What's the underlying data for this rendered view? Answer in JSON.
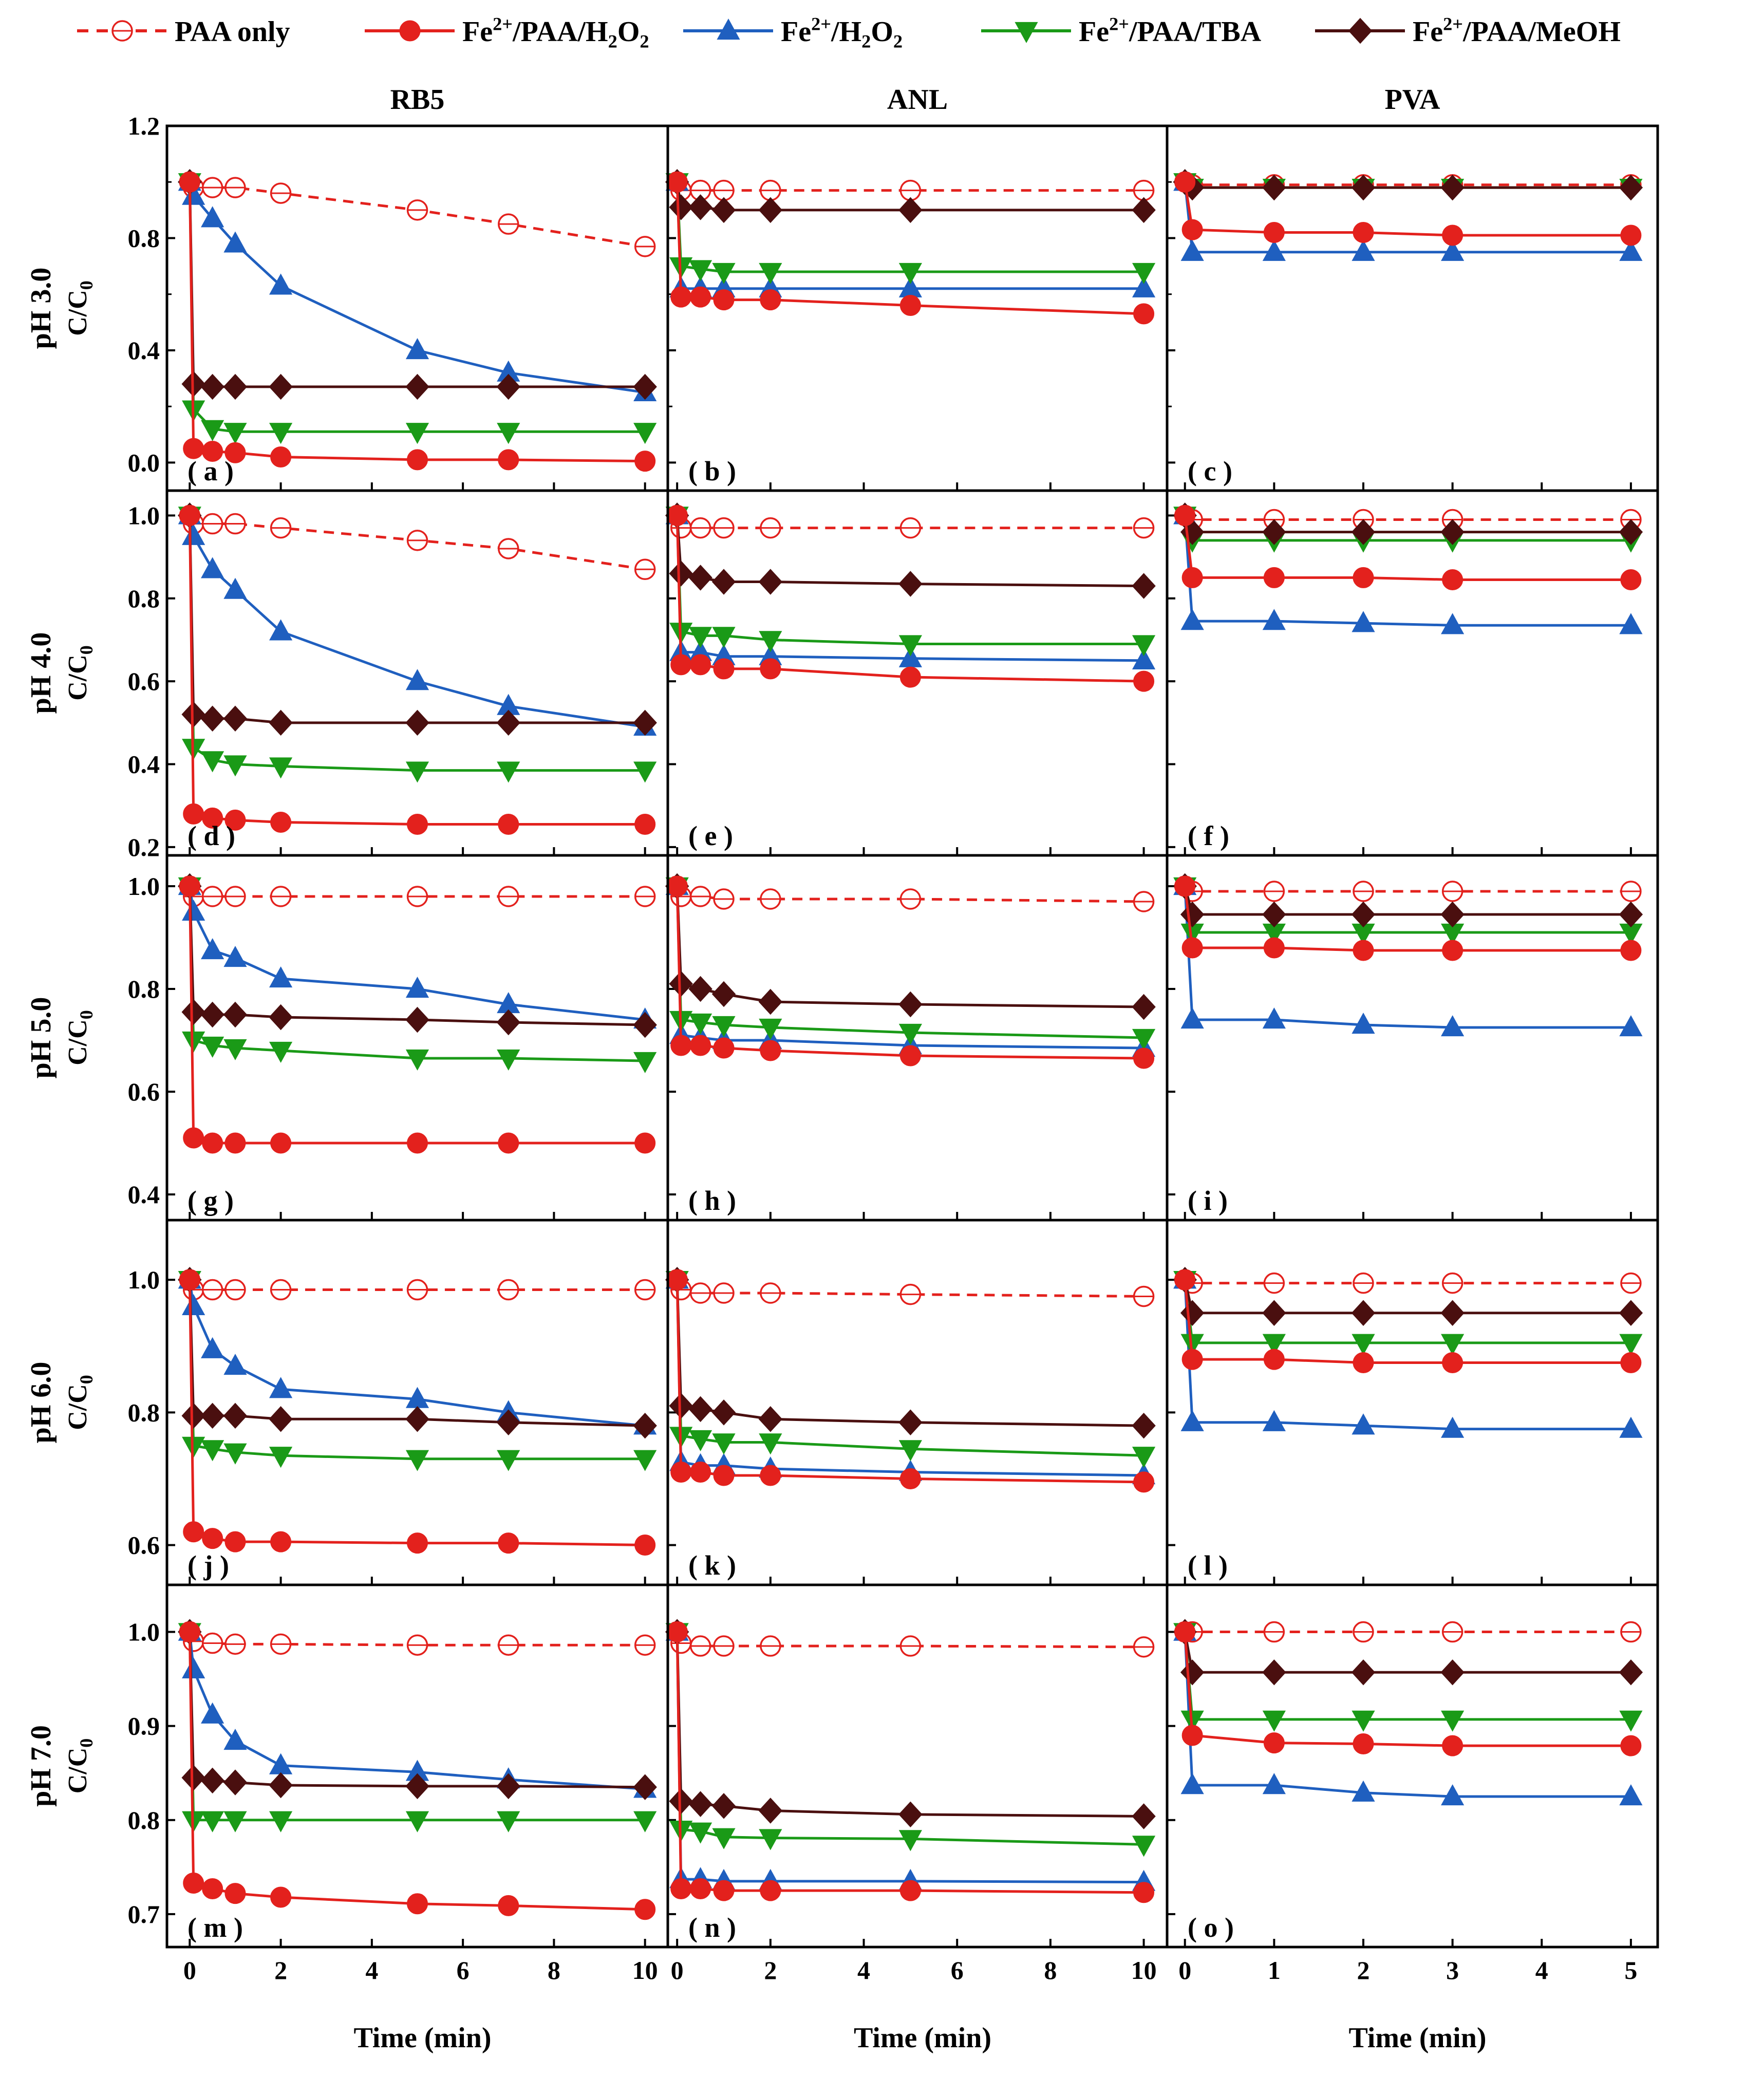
{
  "chart_data": {
    "type": "line",
    "layout": {
      "rows": 5,
      "columns": 3
    },
    "legend": {
      "placement": "top",
      "entries": [
        {
          "key": "paa",
          "label": "PAA only",
          "color": "#e3211d",
          "marker": "open-circle",
          "line": "dashed"
        },
        {
          "key": "h2o2",
          "label": "Fe2+/PAA/H2O2",
          "label_parts": [
            "Fe",
            "2+",
            "/PAA/H",
            "2",
            "O",
            "2"
          ],
          "color": "#e3211d",
          "marker": "circle",
          "line": "solid"
        },
        {
          "key": "fenton",
          "label": "Fe2+/H2O2",
          "label_parts": [
            "Fe",
            "2+",
            "/H",
            "2",
            "O",
            "2"
          ],
          "color": "#1f5fbf",
          "marker": "triangle-up",
          "line": "solid"
        },
        {
          "key": "tba",
          "label": "Fe2+/PAA/TBA",
          "label_parts": [
            "Fe",
            "2+",
            "/PAA/TBA"
          ],
          "color": "#1a9a17",
          "marker": "triangle-down",
          "line": "solid"
        },
        {
          "key": "meoh",
          "label": "Fe2+/PAA/MeOH",
          "label_parts": [
            "Fe",
            "2+",
            "/PAA/MeOH"
          ],
          "color": "#4a0f0f",
          "marker": "diamond",
          "line": "solid"
        }
      ]
    },
    "column_titles": [
      "RB5",
      "ANL",
      "PVA"
    ],
    "row_labels": [
      "pH 3.0",
      "pH 4.0",
      "pH 5.0",
      "pH 6.0",
      "pH 7.0"
    ],
    "ylabel": "C/C0",
    "ylabel_parts": [
      "C/C",
      "0"
    ],
    "xlabel": "Time (min)",
    "columns": [
      {
        "name": "RB5",
        "x": [
          0,
          0.083,
          0.5,
          1,
          2,
          5,
          7,
          10
        ],
        "xlim": [
          -0.5,
          10.5
        ],
        "xticks": [
          0,
          2,
          4,
          6,
          8,
          10
        ]
      },
      {
        "name": "ANL",
        "x": [
          0,
          0.083,
          0.5,
          1,
          2,
          5,
          10
        ],
        "xlim": [
          -0.2,
          10.5
        ],
        "xticks": [
          0,
          2,
          4,
          6,
          8,
          10
        ]
      },
      {
        "name": "PVA",
        "x": [
          0,
          0.083,
          1,
          2,
          3,
          5
        ],
        "xlim": [
          -0.2,
          5.3
        ],
        "xticks": [
          0,
          1,
          2,
          3,
          4,
          5
        ]
      }
    ],
    "rows": [
      {
        "ph": "pH 3.0",
        "ylim": [
          -0.1,
          1.2
        ],
        "yticks": [
          "0.0",
          "0.4",
          "0.8",
          "1.2"
        ],
        "minor": [
          0.2,
          0.6,
          1.0
        ]
      },
      {
        "ph": "pH 4.0",
        "ylim": [
          0.18,
          1.06
        ],
        "yticks": [
          "0.2",
          "0.4",
          "0.6",
          "0.8",
          "1.0"
        ],
        "minor": []
      },
      {
        "ph": "pH 5.0",
        "ylim": [
          0.35,
          1.06
        ],
        "yticks": [
          "0.4",
          "0.6",
          "0.8",
          "1.0"
        ],
        "minor": []
      },
      {
        "ph": "pH 6.0",
        "ylim": [
          0.54,
          1.09
        ],
        "yticks": [
          "0.6",
          "0.8",
          "1.0"
        ],
        "minor": []
      },
      {
        "ph": "pH 7.0",
        "ylim": [
          0.665,
          1.05
        ],
        "yticks": [
          "0.7",
          "0.8",
          "0.9",
          "1.0"
        ],
        "minor": []
      }
    ],
    "panels": [
      {
        "label": "( a )",
        "row": 0,
        "col": 0,
        "series": {
          "paa": [
            1.0,
            0.98,
            0.98,
            0.98,
            0.96,
            0.9,
            0.85,
            0.77
          ],
          "h2o2": [
            1.0,
            0.05,
            0.04,
            0.035,
            0.02,
            0.01,
            0.01,
            0.005
          ],
          "fenton": [
            1.0,
            0.95,
            0.87,
            0.78,
            0.63,
            0.4,
            0.32,
            0.25
          ],
          "tba": [
            1.0,
            0.19,
            0.12,
            0.11,
            0.11,
            0.11,
            0.11,
            0.11
          ],
          "meoh": [
            1.0,
            0.28,
            0.27,
            0.27,
            0.27,
            0.27,
            0.27,
            0.27
          ]
        }
      },
      {
        "label": "( b )",
        "row": 0,
        "col": 1,
        "series": {
          "paa": [
            1.0,
            0.97,
            0.97,
            0.97,
            0.97,
            0.97,
            0.97
          ],
          "h2o2": [
            1.0,
            0.59,
            0.59,
            0.58,
            0.58,
            0.56,
            0.53
          ],
          "fenton": [
            1.0,
            0.62,
            0.62,
            0.62,
            0.62,
            0.62,
            0.62
          ],
          "tba": [
            1.0,
            0.7,
            0.69,
            0.68,
            0.68,
            0.68,
            0.68
          ],
          "meoh": [
            1.0,
            0.91,
            0.91,
            0.9,
            0.9,
            0.9,
            0.9
          ]
        }
      },
      {
        "label": "( c )",
        "row": 0,
        "col": 2,
        "series": {
          "paa": [
            1.0,
            0.99,
            0.99,
            0.99,
            0.99,
            0.99
          ],
          "h2o2": [
            1.0,
            0.83,
            0.82,
            0.82,
            0.81,
            0.81
          ],
          "fenton": [
            1.0,
            0.75,
            0.75,
            0.75,
            0.75,
            0.75
          ],
          "tba": [
            1.0,
            0.98,
            0.98,
            0.98,
            0.98,
            0.98
          ],
          "meoh": [
            1.0,
            0.98,
            0.98,
            0.98,
            0.98,
            0.98
          ]
        }
      },
      {
        "label": "( d )",
        "row": 1,
        "col": 0,
        "series": {
          "paa": [
            1.0,
            0.98,
            0.98,
            0.98,
            0.97,
            0.94,
            0.92,
            0.87
          ],
          "h2o2": [
            1.0,
            0.28,
            0.27,
            0.265,
            0.26,
            0.255,
            0.255,
            0.255
          ],
          "fenton": [
            1.0,
            0.95,
            0.87,
            0.82,
            0.72,
            0.6,
            0.54,
            0.49
          ],
          "tba": [
            1.0,
            0.44,
            0.41,
            0.4,
            0.395,
            0.385,
            0.385,
            0.385
          ],
          "meoh": [
            1.0,
            0.52,
            0.51,
            0.51,
            0.5,
            0.5,
            0.5,
            0.5
          ]
        }
      },
      {
        "label": "( e )",
        "row": 1,
        "col": 1,
        "series": {
          "paa": [
            1.0,
            0.97,
            0.97,
            0.97,
            0.97,
            0.97,
            0.97
          ],
          "h2o2": [
            1.0,
            0.64,
            0.64,
            0.63,
            0.63,
            0.61,
            0.6
          ],
          "fenton": [
            1.0,
            0.67,
            0.67,
            0.66,
            0.66,
            0.655,
            0.65
          ],
          "tba": [
            1.0,
            0.72,
            0.71,
            0.71,
            0.7,
            0.69,
            0.69
          ],
          "meoh": [
            1.0,
            0.86,
            0.85,
            0.84,
            0.84,
            0.835,
            0.83
          ]
        }
      },
      {
        "label": "( f )",
        "row": 1,
        "col": 2,
        "series": {
          "paa": [
            1.0,
            0.99,
            0.99,
            0.99,
            0.99,
            0.99
          ],
          "h2o2": [
            1.0,
            0.85,
            0.85,
            0.85,
            0.845,
            0.845
          ],
          "fenton": [
            1.0,
            0.745,
            0.745,
            0.74,
            0.735,
            0.735
          ],
          "tba": [
            1.0,
            0.94,
            0.94,
            0.94,
            0.94,
            0.94
          ],
          "meoh": [
            1.0,
            0.96,
            0.96,
            0.96,
            0.96,
            0.96
          ]
        }
      },
      {
        "label": "( g )",
        "row": 2,
        "col": 0,
        "series": {
          "paa": [
            1.0,
            0.98,
            0.98,
            0.98,
            0.98,
            0.98,
            0.98,
            0.98
          ],
          "h2o2": [
            1.0,
            0.51,
            0.5,
            0.5,
            0.5,
            0.5,
            0.5,
            0.5
          ],
          "fenton": [
            1.0,
            0.95,
            0.875,
            0.86,
            0.82,
            0.8,
            0.77,
            0.74
          ],
          "tba": [
            1.0,
            0.7,
            0.69,
            0.685,
            0.68,
            0.665,
            0.665,
            0.66
          ],
          "meoh": [
            1.0,
            0.755,
            0.75,
            0.75,
            0.745,
            0.74,
            0.735,
            0.73
          ]
        }
      },
      {
        "label": "( h )",
        "row": 2,
        "col": 1,
        "series": {
          "paa": [
            1.0,
            0.98,
            0.98,
            0.975,
            0.975,
            0.975,
            0.97
          ],
          "h2o2": [
            1.0,
            0.69,
            0.69,
            0.685,
            0.68,
            0.67,
            0.665
          ],
          "fenton": [
            1.0,
            0.71,
            0.705,
            0.7,
            0.7,
            0.69,
            0.685
          ],
          "tba": [
            1.0,
            0.74,
            0.735,
            0.73,
            0.725,
            0.715,
            0.705
          ],
          "meoh": [
            1.0,
            0.81,
            0.8,
            0.79,
            0.775,
            0.77,
            0.765
          ]
        }
      },
      {
        "label": "( i )",
        "row": 2,
        "col": 2,
        "series": {
          "paa": [
            1.0,
            0.99,
            0.99,
            0.99,
            0.99,
            0.99
          ],
          "h2o2": [
            1.0,
            0.88,
            0.88,
            0.875,
            0.875,
            0.875
          ],
          "fenton": [
            1.0,
            0.74,
            0.74,
            0.73,
            0.725,
            0.725
          ],
          "tba": [
            1.0,
            0.91,
            0.91,
            0.91,
            0.91,
            0.91
          ],
          "meoh": [
            1.0,
            0.945,
            0.945,
            0.945,
            0.945,
            0.945
          ]
        }
      },
      {
        "label": "( j )",
        "row": 3,
        "col": 0,
        "series": {
          "paa": [
            1.0,
            0.985,
            0.985,
            0.985,
            0.985,
            0.985,
            0.985,
            0.985
          ],
          "h2o2": [
            1.0,
            0.62,
            0.61,
            0.605,
            0.605,
            0.603,
            0.603,
            0.6
          ],
          "fenton": [
            1.0,
            0.96,
            0.895,
            0.87,
            0.835,
            0.82,
            0.8,
            0.78
          ],
          "tba": [
            1.0,
            0.75,
            0.745,
            0.74,
            0.735,
            0.73,
            0.73,
            0.73
          ],
          "meoh": [
            1.0,
            0.795,
            0.795,
            0.795,
            0.79,
            0.79,
            0.785,
            0.78
          ]
        }
      },
      {
        "label": "( k )",
        "row": 3,
        "col": 1,
        "series": {
          "paa": [
            1.0,
            0.985,
            0.98,
            0.98,
            0.98,
            0.978,
            0.975
          ],
          "h2o2": [
            1.0,
            0.71,
            0.71,
            0.705,
            0.705,
            0.7,
            0.695
          ],
          "fenton": [
            1.0,
            0.725,
            0.72,
            0.72,
            0.715,
            0.71,
            0.705
          ],
          "tba": [
            1.0,
            0.765,
            0.76,
            0.755,
            0.755,
            0.745,
            0.735
          ],
          "meoh": [
            1.0,
            0.81,
            0.805,
            0.8,
            0.79,
            0.785,
            0.78
          ]
        }
      },
      {
        "label": "( l )",
        "row": 3,
        "col": 2,
        "series": {
          "paa": [
            1.0,
            0.995,
            0.995,
            0.995,
            0.995,
            0.995
          ],
          "h2o2": [
            1.0,
            0.88,
            0.88,
            0.875,
            0.875,
            0.875
          ],
          "fenton": [
            1.0,
            0.785,
            0.785,
            0.78,
            0.775,
            0.775
          ],
          "tba": [
            1.0,
            0.905,
            0.905,
            0.905,
            0.905,
            0.905
          ],
          "meoh": [
            1.0,
            0.95,
            0.95,
            0.95,
            0.95,
            0.95
          ]
        }
      },
      {
        "label": "( m )",
        "row": 4,
        "col": 0,
        "series": {
          "paa": [
            1.0,
            0.99,
            0.988,
            0.987,
            0.987,
            0.986,
            0.986,
            0.986
          ],
          "h2o2": [
            1.0,
            0.733,
            0.727,
            0.722,
            0.718,
            0.711,
            0.709,
            0.705
          ],
          "fenton": [
            1.0,
            0.96,
            0.912,
            0.884,
            0.858,
            0.851,
            0.843,
            0.833
          ],
          "tba": [
            1.0,
            0.8,
            0.8,
            0.8,
            0.8,
            0.8,
            0.8,
            0.8
          ],
          "meoh": [
            1.0,
            0.845,
            0.842,
            0.84,
            0.837,
            0.836,
            0.836,
            0.835
          ]
        }
      },
      {
        "label": "( n )",
        "row": 4,
        "col": 1,
        "series": {
          "paa": [
            1.0,
            0.988,
            0.985,
            0.985,
            0.985,
            0.985,
            0.984
          ],
          "h2o2": [
            1.0,
            0.727,
            0.727,
            0.725,
            0.725,
            0.725,
            0.723
          ],
          "fenton": [
            1.0,
            0.737,
            0.737,
            0.735,
            0.735,
            0.735,
            0.734
          ],
          "tba": [
            1.0,
            0.79,
            0.788,
            0.782,
            0.781,
            0.78,
            0.774
          ],
          "meoh": [
            1.0,
            0.82,
            0.817,
            0.815,
            0.81,
            0.806,
            0.804
          ]
        }
      },
      {
        "label": "( o )",
        "row": 4,
        "col": 2,
        "series": {
          "paa": [
            1.0,
            1.0,
            1.0,
            1.0,
            1.0,
            1.0
          ],
          "h2o2": [
            1.0,
            0.89,
            0.882,
            0.881,
            0.879,
            0.879
          ],
          "fenton": [
            1.0,
            0.837,
            0.837,
            0.829,
            0.825,
            0.825
          ],
          "tba": [
            1.0,
            0.907,
            0.907,
            0.907,
            0.907,
            0.907
          ],
          "meoh": [
            1.0,
            0.957,
            0.957,
            0.957,
            0.957,
            0.957
          ]
        }
      }
    ]
  }
}
